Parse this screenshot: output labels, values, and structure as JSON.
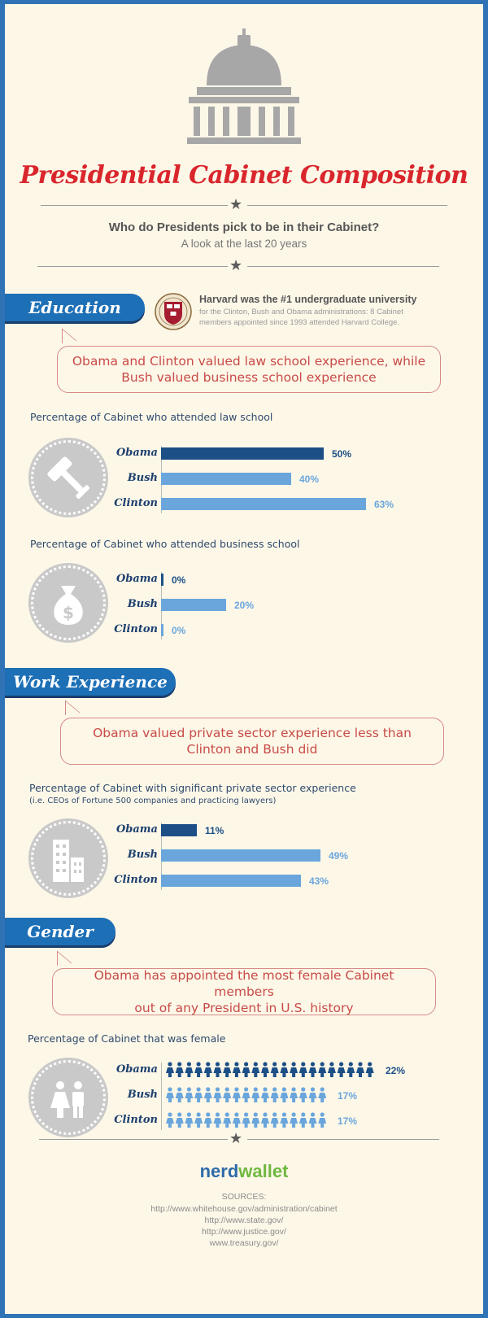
{
  "header": {
    "title": "Presidential Cabinet Composition",
    "question": "Who do Presidents pick to be in their Cabinet?",
    "subtitle": "A look at the last 20 years",
    "icon": "capitol-dome-icon"
  },
  "colors": {
    "obama": "#1c4f86",
    "others": "#6aa6dc",
    "tab": "#1d6fb6",
    "title": "#d9262c"
  },
  "education": {
    "tab": "Education",
    "harvard_heading": "Harvard was the #1 undergraduate university",
    "harvard_line1": "for the Clinton, Bush and Obama administrations: 8 Cabinet",
    "harvard_line2": "members appointed since 1993 attended Harvard College.",
    "callout_line1": "Obama and Clinton valued law school experience, while",
    "callout_line2": "Bush valued business school experience"
  },
  "work": {
    "tab": "Work Experience",
    "callout_line1": "Obama valued private sector experience less than",
    "callout_line2": "Clinton and Bush did"
  },
  "gender": {
    "tab": "Gender",
    "callout_line1": "Obama has appointed the most female Cabinet members",
    "callout_line2": "out of any President in U.S. history"
  },
  "chart_data": [
    {
      "type": "bar",
      "title": "Percentage of Cabinet who attended law school",
      "categories": [
        "Obama",
        "Bush",
        "Clinton"
      ],
      "values": [
        50,
        40,
        63
      ],
      "value_labels": [
        "50%",
        "40%",
        "63%"
      ],
      "unit": "%"
    },
    {
      "type": "bar",
      "title": "Percentage of Cabinet who attended business school",
      "categories": [
        "Obama",
        "Bush",
        "Clinton"
      ],
      "values": [
        0,
        20,
        0
      ],
      "value_labels": [
        "0%",
        "20%",
        "0%"
      ],
      "unit": "%"
    },
    {
      "type": "bar",
      "title": "Percentage of Cabinet with significant private sector experience",
      "note": "(i.e. CEOs of Fortune 500 companies and practicing lawyers)",
      "categories": [
        "Obama",
        "Bush",
        "Clinton"
      ],
      "values": [
        11,
        49,
        43
      ],
      "value_labels": [
        "11%",
        "49%",
        "43%"
      ],
      "unit": "%"
    },
    {
      "type": "bar",
      "title": "Percentage of Cabinet that was female",
      "categories": [
        "Obama",
        "Bush",
        "Clinton"
      ],
      "values": [
        22,
        17,
        17
      ],
      "value_labels": [
        "22%",
        "17%",
        "17%"
      ],
      "unit": "%",
      "style": "pictogram"
    }
  ],
  "footer": {
    "logo_part1": "nerd",
    "logo_part2": "wallet",
    "sources_label": "SOURCES:",
    "sources": [
      "http://www.whitehouse.gov/administration/cabinet",
      "http://www.state.gov/",
      "http://www.justice.gov/",
      "www.treasury.gov/"
    ]
  }
}
